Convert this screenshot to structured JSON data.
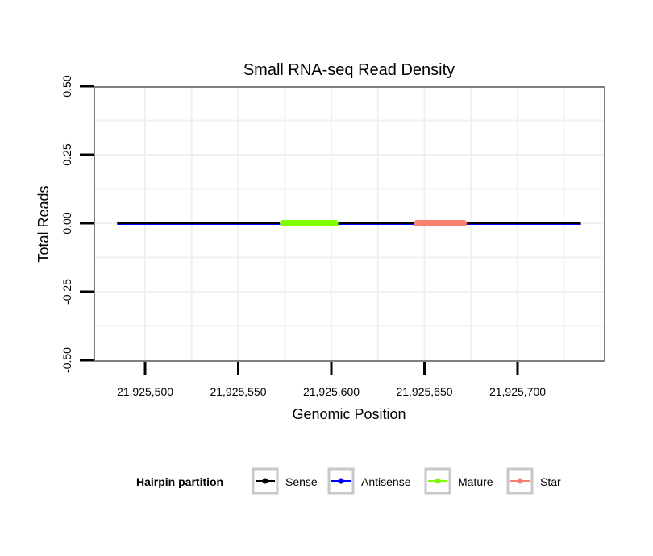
{
  "chart_data": {
    "type": "line",
    "title": "Small RNA-seq Read Density",
    "xlabel": "Genomic Position",
    "ylabel": "Total Reads",
    "xlim": [
      21925473,
      21925747
    ],
    "ylim": [
      -0.5,
      0.5
    ],
    "xticks": [
      21925500,
      21925550,
      21925600,
      21925650,
      21925700
    ],
    "xtick_labels": [
      "21,925,500",
      "21,925,550",
      "21,925,600",
      "21,925,650",
      "21,925,700"
    ],
    "yticks": [
      -0.5,
      -0.25,
      0,
      0.25,
      0.5
    ],
    "ytick_labels": [
      "-0.50",
      "-0.25",
      "0.00",
      "0.25",
      "0.50"
    ],
    "grid": true,
    "legend": {
      "title": "Hairpin partition",
      "placement": "bottom"
    },
    "series": [
      {
        "name": "Sense",
        "color": "#000000",
        "x": [
          21925485,
          21925734
        ],
        "y": [
          0,
          0
        ]
      },
      {
        "name": "Antisense",
        "color": "#0000FF",
        "x": [
          21925485,
          21925734
        ],
        "y": [
          0,
          0
        ]
      },
      {
        "name": "Mature",
        "color": "#7FFF00",
        "x": [
          21925574,
          21925602
        ],
        "y": [
          0,
          0
        ]
      },
      {
        "name": "Star",
        "color": "#FA8072",
        "x": [
          21925646,
          21925671
        ],
        "y": [
          0,
          0
        ]
      }
    ]
  }
}
